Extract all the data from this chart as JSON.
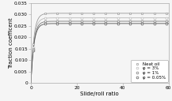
{
  "title": "",
  "xlabel": "Slide/roll ratio",
  "ylabel": "Traction coefficent",
  "xlim": [
    0,
    60
  ],
  "ylim": [
    0,
    0.035
  ],
  "yticks": [
    0,
    0.005,
    0.01,
    0.015,
    0.02,
    0.025,
    0.03,
    0.035
  ],
  "xticks": [
    0,
    20,
    40,
    60
  ],
  "series": [
    {
      "label": "Neat oil",
      "color": "#999999",
      "marker": "s",
      "marker_size": 2.0,
      "final_value": 0.0305,
      "k": 0.8
    },
    {
      "label": "φ = 3%",
      "color": "#bbbbbb",
      "marker": "o",
      "marker_size": 2.0,
      "final_value": 0.0285,
      "k": 0.8
    },
    {
      "label": "φ = 1%",
      "color": "#777777",
      "marker": "o",
      "marker_size": 2.0,
      "final_value": 0.027,
      "k": 0.8
    },
    {
      "label": "φ = 0.05%",
      "color": "#555555",
      "marker": "o",
      "marker_size": 2.0,
      "final_value": 0.026,
      "k": 0.8
    }
  ],
  "background_color": "#f5f5f5",
  "legend_fontsize": 4.0,
  "axis_fontsize": 5.0,
  "tick_fontsize": 4.2,
  "linewidth": 0.6,
  "num_markers": 12
}
